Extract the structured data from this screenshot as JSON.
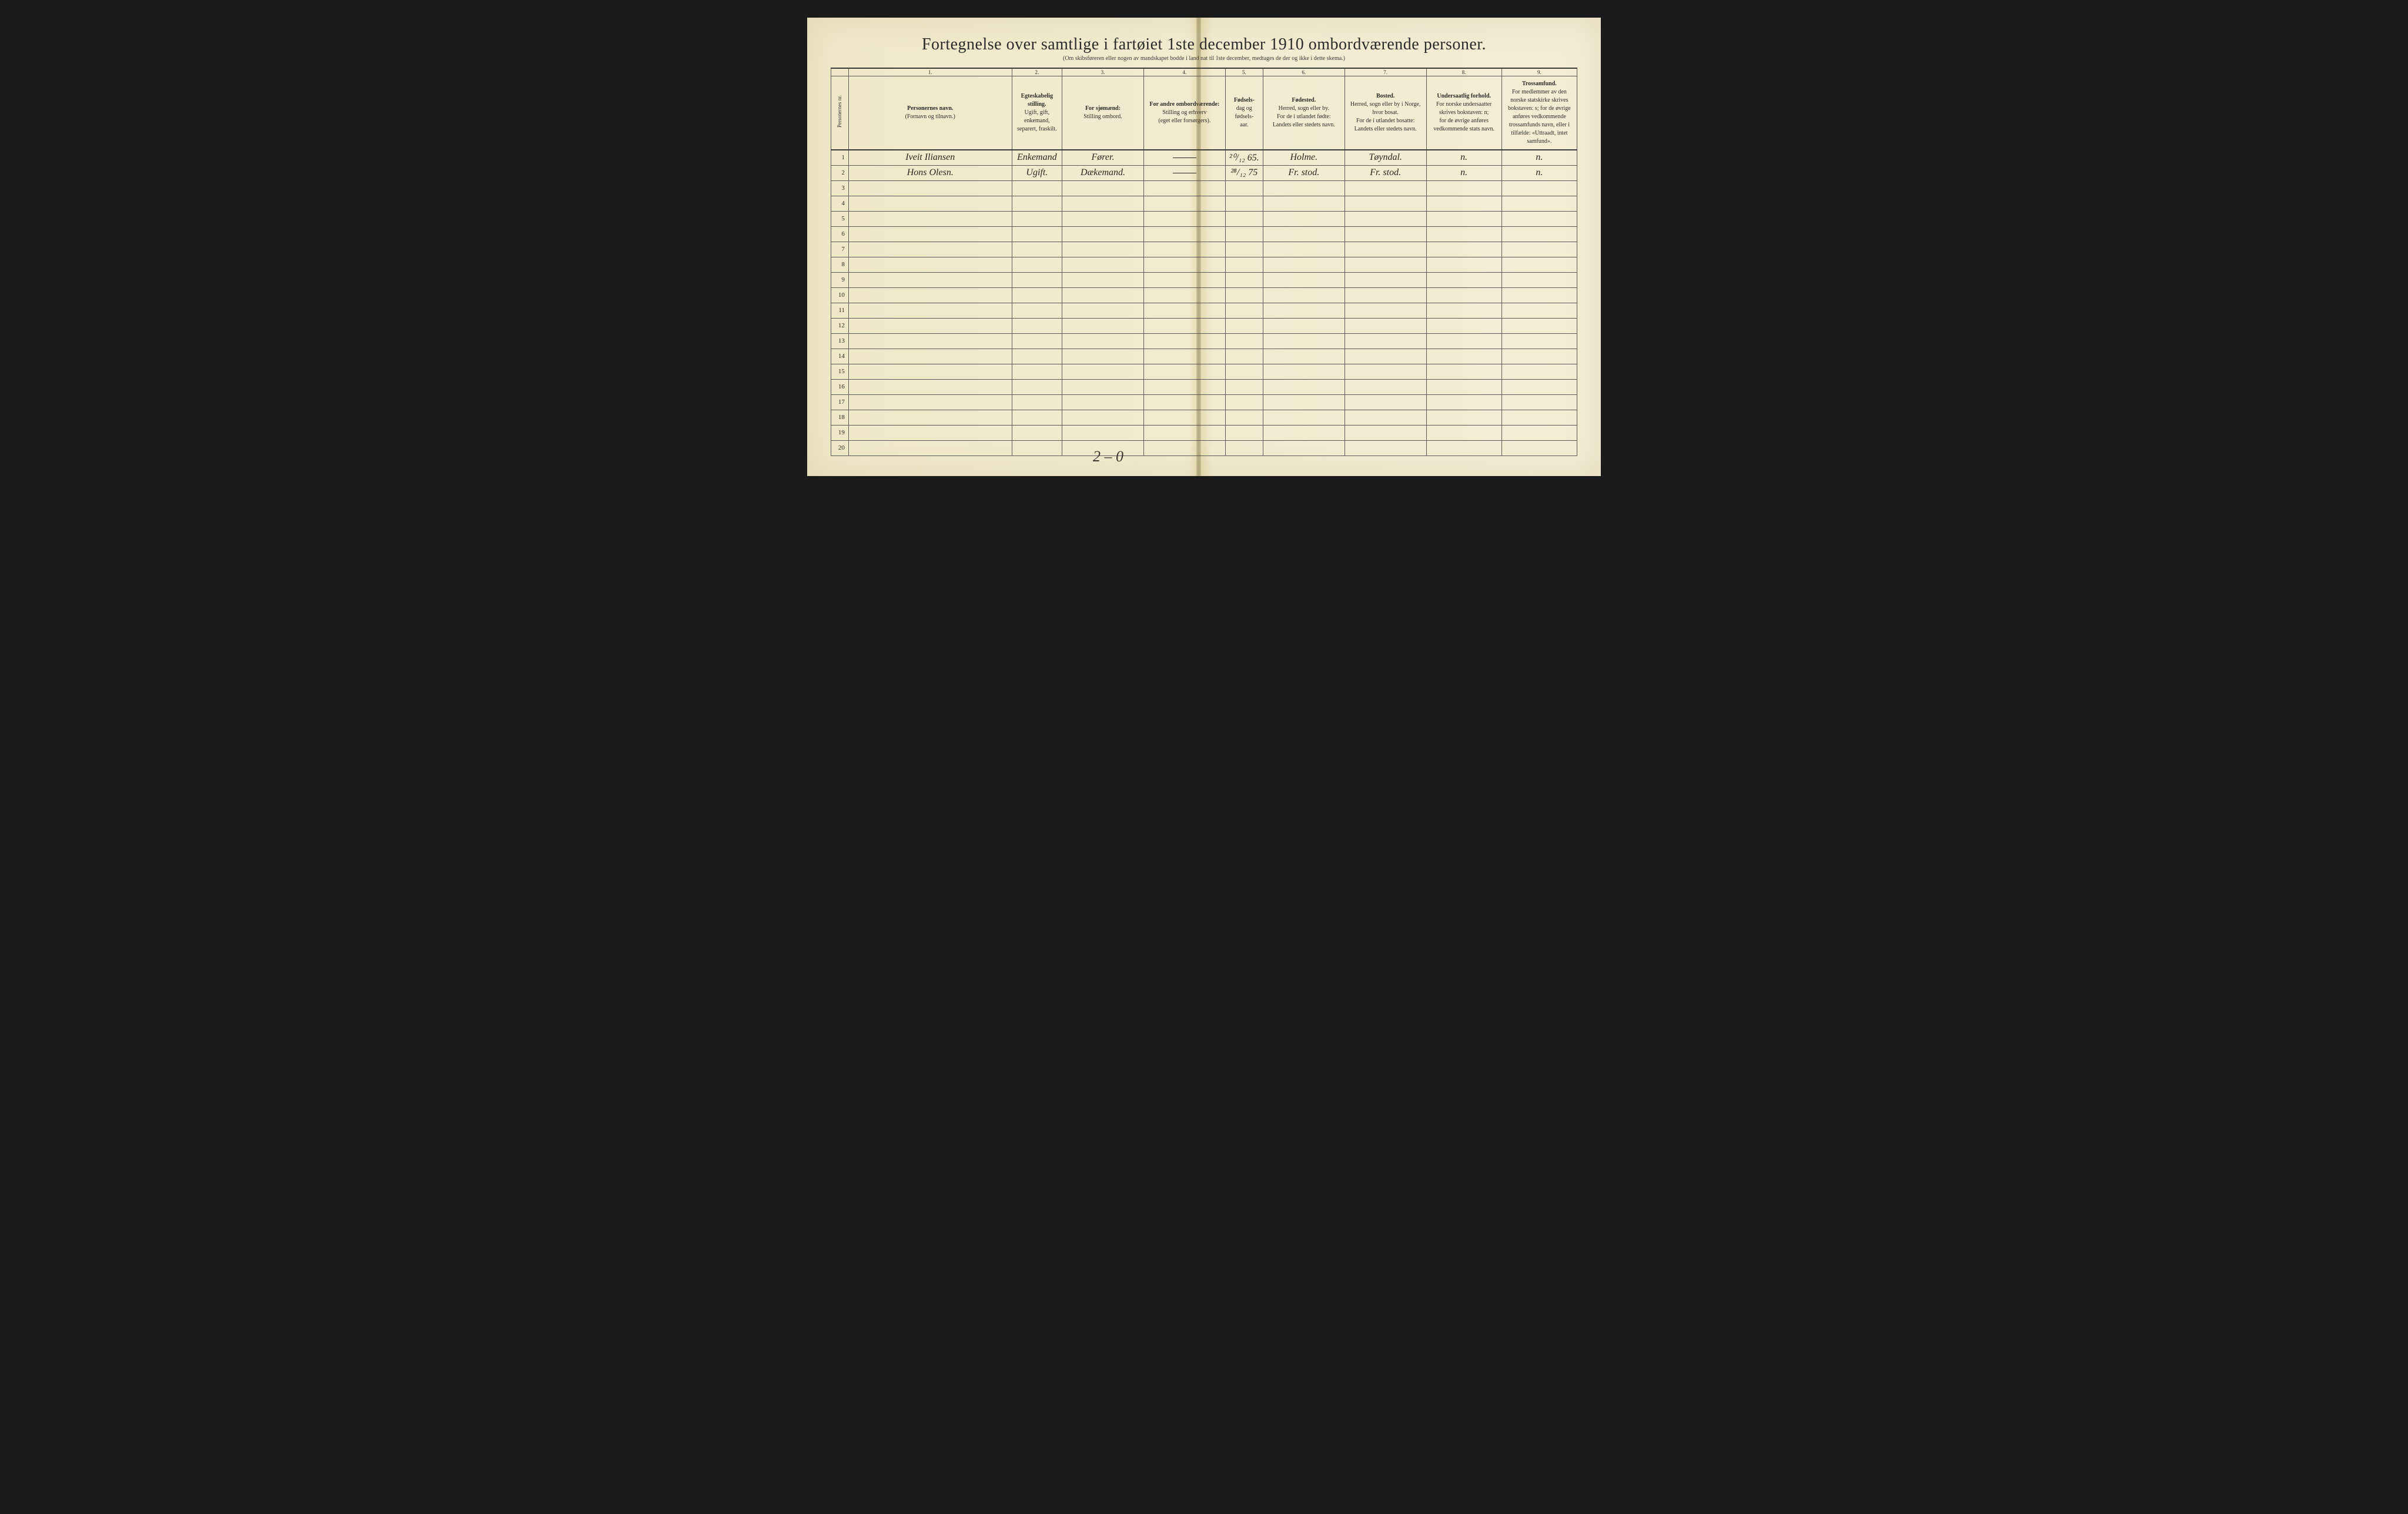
{
  "title": "Fortegnelse over samtlige i fartøiet 1ste december 1910 ombordværende personer.",
  "subtitle": "(Om skibsføreren eller nogen av mandskapet bodde i land nat til 1ste december, medtages de der og ikke i dette skema.)",
  "columns": {
    "num_labels": [
      "",
      "1.",
      "2.",
      "3.",
      "4.",
      "5.",
      "6.",
      "7.",
      "8.",
      "9."
    ],
    "c0": "Personernes nr.",
    "c1": "Personernes navn.\n(Fornavn og tilnavn.)",
    "c2": "Egteskabelig stilling.\nUgift, gift, enkemand, separert, fraskilt.",
    "c3": "For sjømænd:\nStilling ombord.",
    "c4": "For andre ombordværende:\nStilling og erhverv\n(eget eller forsørgers).",
    "c5": "Fødsels-\ndag og\nfødsels-\naar.",
    "c6": "Fødested.\nHerred, sogn eller by.\nFor de i utlandet fødte:\nLandets eller stedets navn.",
    "c7": "Bosted.\nHerred, sogn eller by i Norge, hvor bosat.\nFor de i utlandet bosatte:\nLandets eller stedets navn.",
    "c8": "Undersaatlig forhold.\nFor norske undersaatter skrives bokstaven: n;\nfor de øvrige anføres vedkommende stats navn.",
    "c9": "Trossamfund.\nFor medlemmer av den norske statskirke skrives bokstaven: s; for de øvrige anføres vedkommende trossamfunds navn, eller i tilfælde: «Uttraadt, intet samfund»."
  },
  "rows": [
    {
      "num": "1",
      "name": "Iveit   Iliansen",
      "status": "Enkemand",
      "seaman": "Fører.",
      "other": "—",
      "birth": "²⁰/₁₂ 65.",
      "birthplace": "Holme.",
      "residence": "Tøyndal.",
      "nation": "n.",
      "religion": "n."
    },
    {
      "num": "2",
      "name": "Hons   Olesn.",
      "status": "Ugift.",
      "seaman": "Dækemand.",
      "other": "—",
      "birth": "²⁸/₁₂ 75",
      "birthplace": "Fr. stod.",
      "residence": "Fr. stod.",
      "nation": "n.",
      "religion": "n."
    }
  ],
  "total_rows": 20,
  "footer": "2 – 0",
  "styling": {
    "page_bg": "#1a1a1a",
    "paper_left": "#f0e8c8",
    "paper_right": "#f4edd5",
    "fold_shadow": "#8a7a3a",
    "border_color": "#5a5a5a",
    "heavy_border": "#3a3a3a",
    "text_color": "#2a2a2a",
    "handwriting_color": "#2a2520",
    "title_fontsize": 28,
    "header_fontsize": 10,
    "body_row_height": 26
  }
}
